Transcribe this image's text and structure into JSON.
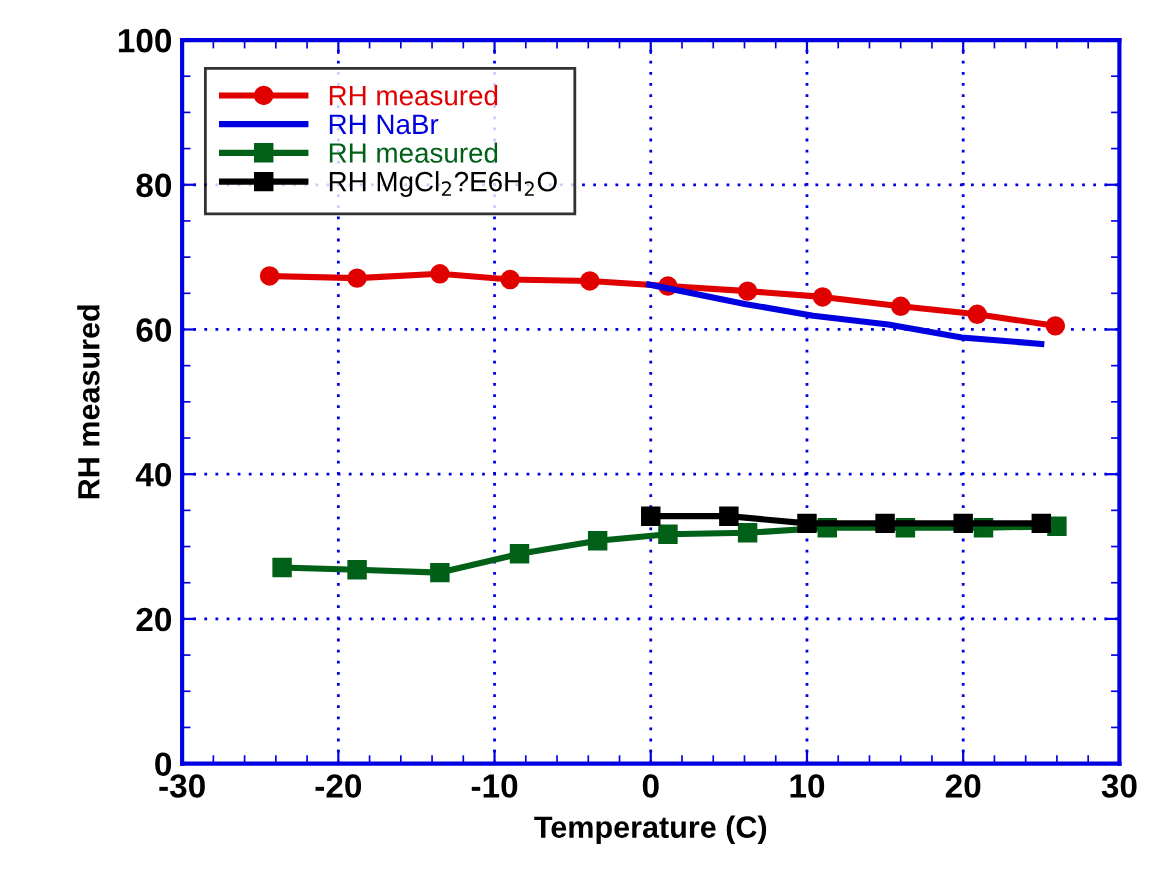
{
  "chart_data": {
    "type": "line",
    "xlabel": "Temperature (C)",
    "ylabel": "RH measured",
    "xlim": [
      -30,
      30
    ],
    "xticks": [
      -30,
      -20,
      -10,
      0,
      10,
      20,
      30
    ],
    "ylim": [
      0,
      100
    ],
    "yticks": [
      0,
      20,
      40,
      60,
      80,
      100
    ],
    "grid": true,
    "legend": "top left",
    "line_style": "solid",
    "series": [
      {
        "name": "RH measured",
        "color": "#e00000",
        "marker": "circle",
        "x": [
          -24.4,
          -18.8,
          -13.5,
          -9.0,
          -3.9,
          1.1,
          6.2,
          11.0,
          16.0,
          20.9,
          25.9
        ],
        "values": [
          67.4,
          67.1,
          67.7,
          66.9,
          66.7,
          66.0,
          65.3,
          64.5,
          63.2,
          62.1,
          60.5
        ]
      },
      {
        "name": "RH NaBr",
        "color": "#0000e0",
        "marker": "none",
        "x": [
          -0.1,
          6.1,
          10.4,
          15.2,
          19.9,
          25.0
        ],
        "values": [
          66.2,
          63.5,
          61.9,
          60.7,
          58.9,
          58.0
        ]
      },
      {
        "name": "RH measured",
        "color": "#006018",
        "marker": "square",
        "x": [
          -23.6,
          -18.8,
          -13.5,
          -8.4,
          -3.4,
          1.1,
          6.2,
          11.3,
          16.3,
          21.3,
          26.0
        ],
        "values": [
          27.1,
          26.8,
          26.4,
          29.0,
          30.8,
          31.7,
          31.9,
          32.6,
          32.6,
          32.6,
          32.8
        ]
      },
      {
        "name": "RH MgCl$_{2}$?E6H$_{2}$O",
        "color": "#000000",
        "marker": "square",
        "x": [
          0,
          5,
          10,
          15,
          20,
          25
        ],
        "values": [
          34.2,
          34.2,
          33.2,
          33.2,
          33.2,
          33.2
        ]
      }
    ]
  }
}
